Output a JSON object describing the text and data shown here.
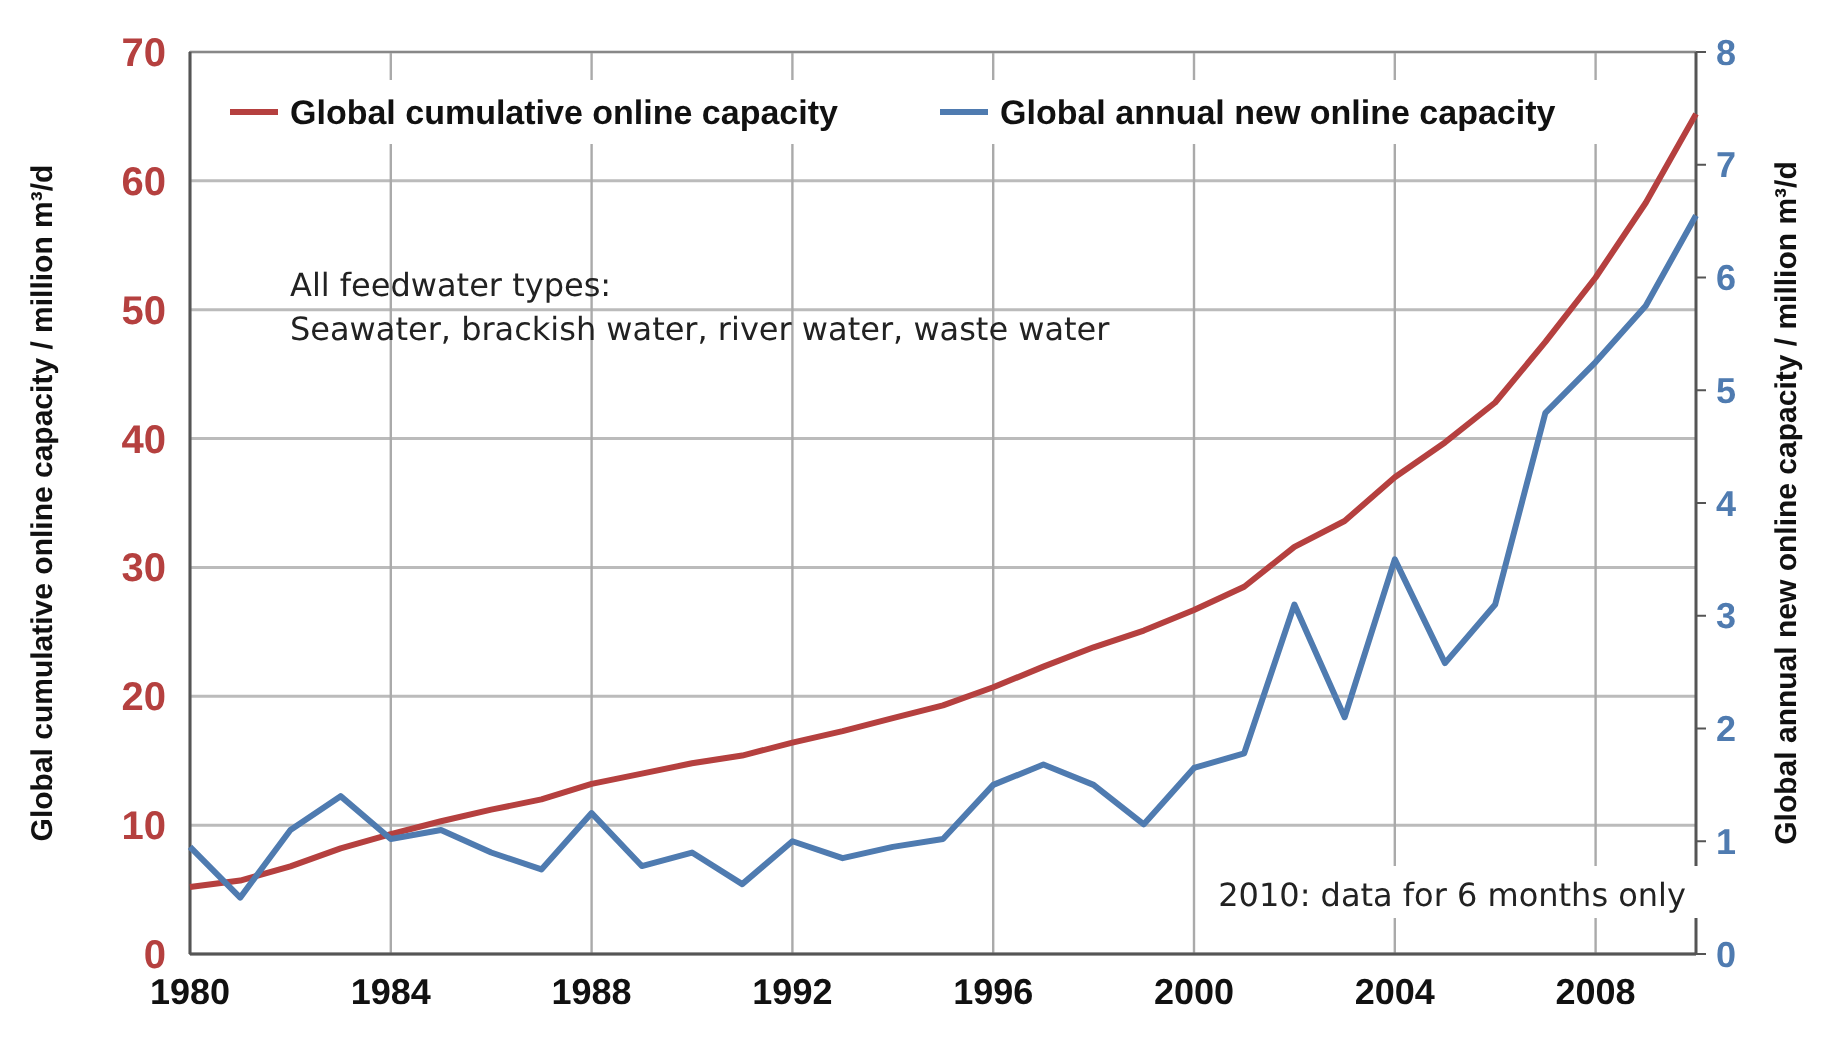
{
  "chart_data": {
    "type": "line",
    "ylabel": "Global cumulative online capacity  / million m³/d",
    "y2label": "Global annual new online capacity  / million m³/d",
    "x": [
      1980,
      1981,
      1982,
      1983,
      1984,
      1985,
      1986,
      1987,
      1988,
      1989,
      1990,
      1991,
      1992,
      1993,
      1994,
      1995,
      1996,
      1997,
      1998,
      1999,
      2000,
      2001,
      2002,
      2003,
      2004,
      2005,
      2006,
      2007,
      2008,
      2009,
      2010
    ],
    "series": [
      {
        "name": "Global cumulative online capacity",
        "color": "#b5403f",
        "values": [
          5.2,
          5.7,
          6.8,
          8.2,
          9.3,
          10.3,
          11.2,
          12.0,
          13.2,
          14.0,
          14.8,
          15.4,
          16.4,
          17.3,
          18.3,
          19.3,
          20.7,
          22.3,
          23.8,
          25.1,
          26.7,
          28.5,
          31.6,
          33.6,
          37.0,
          39.7,
          42.8,
          47.5,
          52.5,
          58.3,
          65.2
        ]
      },
      {
        "name": "Global annual new online capacity",
        "color": "#4f7bb0",
        "axis": "y2",
        "values": [
          0.95,
          0.5,
          1.1,
          1.4,
          1.02,
          1.1,
          0.9,
          0.75,
          1.25,
          0.78,
          0.9,
          0.62,
          1.0,
          0.85,
          0.95,
          1.02,
          1.5,
          1.68,
          1.5,
          1.15,
          1.65,
          1.78,
          3.1,
          2.1,
          3.5,
          2.58,
          3.1,
          4.8,
          5.25,
          5.75,
          6.55
        ]
      }
    ],
    "xlim": [
      1980,
      2010
    ],
    "xticks": [
      1980,
      1984,
      1988,
      1992,
      1996,
      2000,
      2004,
      2008
    ],
    "ylim": [
      0,
      70
    ],
    "yticks": [
      0,
      10,
      20,
      30,
      40,
      50,
      60,
      70
    ],
    "y2lim": [
      0,
      8
    ],
    "y2ticks": [
      0,
      1,
      2,
      3,
      4,
      5,
      6,
      7,
      8
    ],
    "grid": true,
    "legend": "top",
    "marker": "none",
    "line_style": "solid",
    "annotations": [
      "All feedwater types:\nSeawater, brackish water, river water, waste water",
      "2010: data for 6 months only"
    ]
  }
}
